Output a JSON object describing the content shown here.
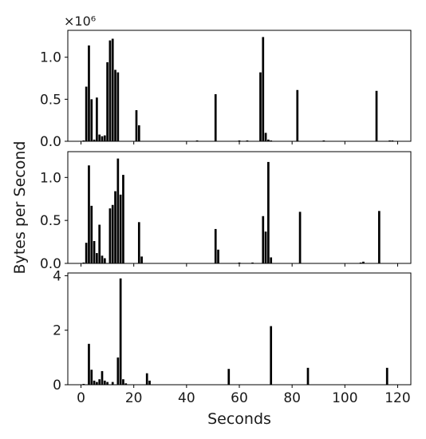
{
  "chart_data": [
    {
      "type": "bar",
      "ylim": [
        0,
        1.32
      ],
      "xlim": [
        -5,
        125
      ],
      "y_ticks": [
        0.0,
        0.5,
        1.0
      ],
      "y_tick_labels": [
        "0.0",
        "0.5",
        "1.0"
      ],
      "offset_text": "×10⁶",
      "x_tick_labels_visible": false,
      "x": [
        1,
        2,
        3,
        4,
        5,
        6,
        7,
        8,
        9,
        10,
        11,
        12,
        13,
        14,
        21,
        22,
        44,
        51,
        60,
        63,
        68,
        69,
        70,
        71,
        72,
        82,
        92,
        112,
        117,
        118
      ],
      "values": [
        0.01,
        0.65,
        1.14,
        0.5,
        0.02,
        0.52,
        0.08,
        0.06,
        0.07,
        0.94,
        1.2,
        1.22,
        0.85,
        0.82,
        0.37,
        0.19,
        0.01,
        0.56,
        0.01,
        0.01,
        0.82,
        1.24,
        0.1,
        0.02,
        0.01,
        0.61,
        0.01,
        0.6,
        0.01,
        0.01
      ]
    },
    {
      "type": "bar",
      "ylim": [
        0,
        1.3
      ],
      "xlim": [
        -5,
        125
      ],
      "y_ticks": [
        0.0,
        0.5,
        1.0
      ],
      "y_tick_labels": [
        "0.0",
        "0.5",
        "1.0"
      ],
      "x_tick_labels_visible": false,
      "x": [
        1,
        2,
        3,
        4,
        5,
        6,
        7,
        8,
        9,
        11,
        12,
        13,
        14,
        15,
        16,
        22,
        23,
        51,
        52,
        60,
        65,
        69,
        70,
        71,
        72,
        83,
        106,
        107,
        113
      ],
      "values": [
        0.01,
        0.24,
        1.14,
        0.67,
        0.26,
        0.12,
        0.45,
        0.09,
        0.06,
        0.64,
        0.68,
        0.84,
        1.22,
        0.8,
        1.03,
        0.48,
        0.08,
        0.4,
        0.16,
        0.01,
        0.01,
        0.55,
        0.37,
        1.18,
        0.07,
        0.6,
        0.01,
        0.02,
        0.61
      ]
    },
    {
      "type": "bar",
      "ylim": [
        0,
        4.1
      ],
      "xlim": [
        -5,
        125
      ],
      "y_ticks": [
        0,
        2,
        4
      ],
      "y_tick_labels": [
        "0",
        "2",
        "4"
      ],
      "x_ticks": [
        0,
        20,
        40,
        60,
        80,
        100,
        120
      ],
      "x_tick_labels": [
        "0",
        "20",
        "40",
        "60",
        "80",
        "100",
        "120"
      ],
      "x": [
        1,
        3,
        4,
        5,
        6,
        7,
        8,
        9,
        10,
        12,
        14,
        15,
        16,
        17,
        25,
        26,
        56,
        72,
        86,
        116
      ],
      "values": [
        0.03,
        1.5,
        0.55,
        0.15,
        0.1,
        0.2,
        0.5,
        0.15,
        0.1,
        0.1,
        1.0,
        3.9,
        0.2,
        0.05,
        0.42,
        0.15,
        0.58,
        2.15,
        0.62,
        0.62
      ]
    }
  ],
  "axes": {
    "xlabel": "Seconds",
    "ylabel": "Bytes per Second"
  }
}
